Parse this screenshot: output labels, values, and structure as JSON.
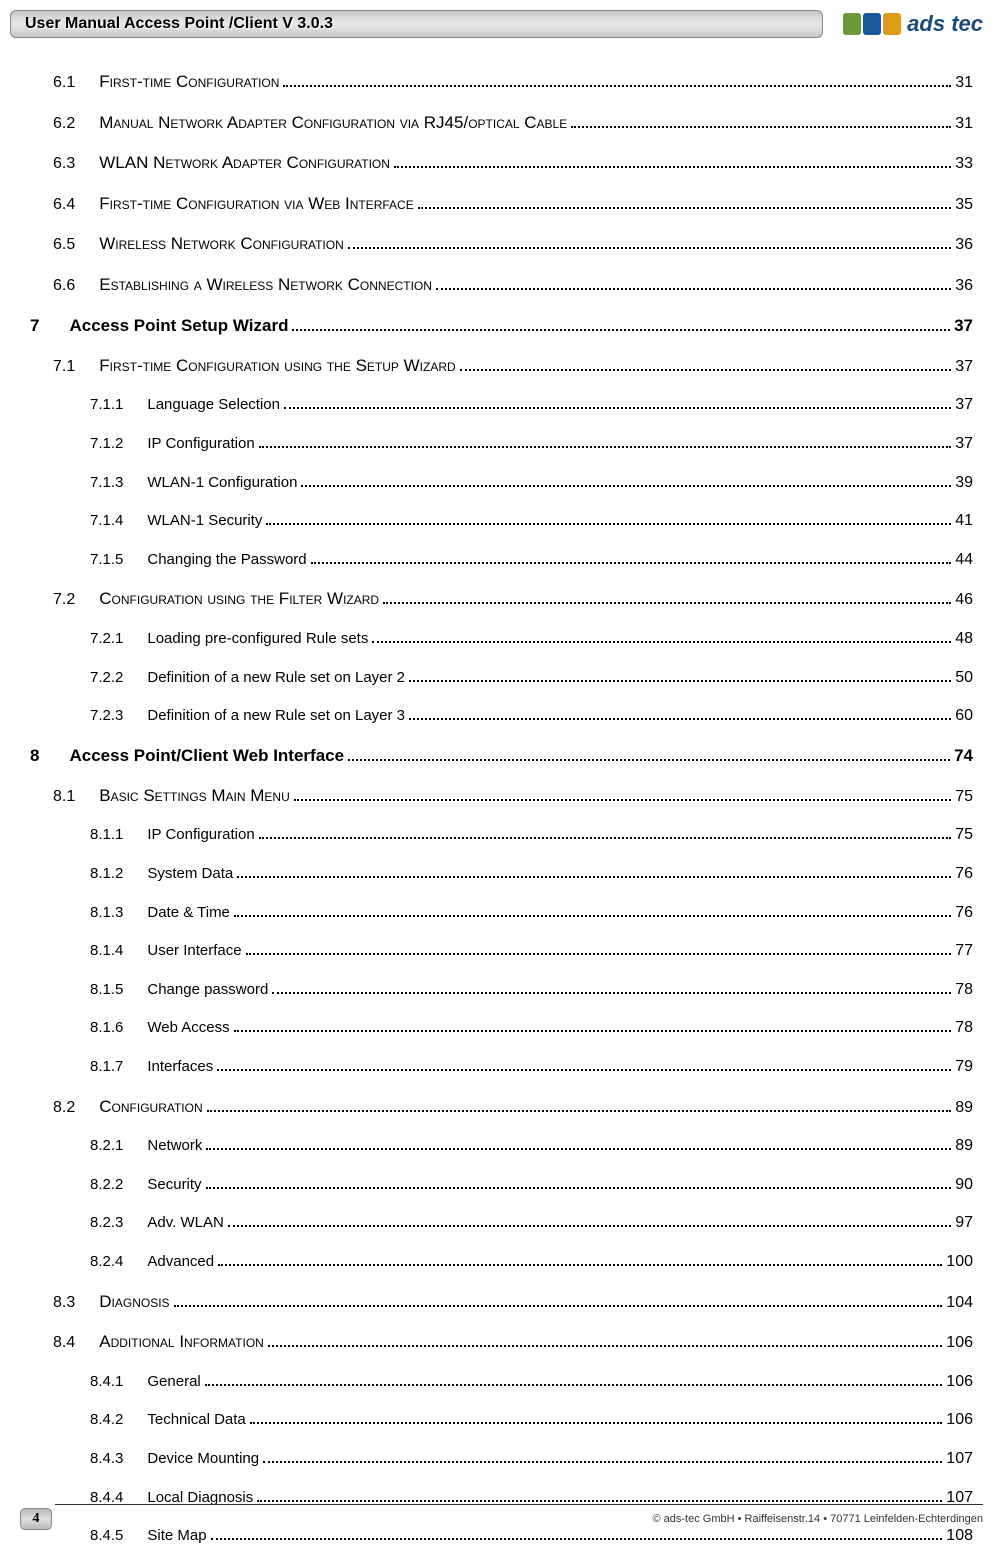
{
  "header": {
    "title": "User Manual Access Point /Client V 3.0.3",
    "logo_text": "ads tec",
    "logo_colors": [
      "#6a9a3a",
      "#1a5a9a",
      "#e09a1a"
    ],
    "logo_text_color": "#1a4a7a"
  },
  "toc": [
    {
      "level": "section",
      "num": "6.1",
      "title": "First-time Configuration",
      "page": "31"
    },
    {
      "level": "section",
      "num": "6.2",
      "title": "Manual Network Adapter Configuration via RJ45/optical Cable",
      "page": "31"
    },
    {
      "level": "section",
      "num": "6.3",
      "title": "WLAN Network Adapter Configuration",
      "page": "33"
    },
    {
      "level": "section",
      "num": "6.4",
      "title": "First-time Configuration via Web Interface",
      "page": "35"
    },
    {
      "level": "section",
      "num": "6.5",
      "title": "Wireless Network Configuration",
      "page": "36"
    },
    {
      "level": "section",
      "num": "6.6",
      "title": "Establishing a Wireless Network Connection",
      "page": "36"
    },
    {
      "level": "chapter",
      "num": "7",
      "title": "Access Point Setup Wizard",
      "page": "37"
    },
    {
      "level": "section",
      "num": "7.1",
      "title": "First-time Configuration using the Setup Wizard",
      "page": "37"
    },
    {
      "level": "sub",
      "num": "7.1.1",
      "title": "Language Selection",
      "page": "37"
    },
    {
      "level": "sub",
      "num": "7.1.2",
      "title": "IP Configuration",
      "page": "37"
    },
    {
      "level": "sub",
      "num": "7.1.3",
      "title": "WLAN-1 Configuration",
      "page": "39"
    },
    {
      "level": "sub",
      "num": "7.1.4",
      "title": "WLAN-1 Security",
      "page": "41"
    },
    {
      "level": "sub",
      "num": "7.1.5",
      "title": "Changing the Password",
      "page": "44"
    },
    {
      "level": "section",
      "num": "7.2",
      "title": "Configuration using the Filter Wizard",
      "page": "46"
    },
    {
      "level": "sub",
      "num": "7.2.1",
      "title": "Loading pre-configured Rule sets",
      "page": "48"
    },
    {
      "level": "sub",
      "num": "7.2.2",
      "title": "Definition of a new Rule set on Layer 2",
      "page": "50"
    },
    {
      "level": "sub",
      "num": "7.2.3",
      "title": "Definition of a new Rule set on Layer 3",
      "page": "60"
    },
    {
      "level": "chapter",
      "num": "8",
      "title": "Access Point/Client Web Interface",
      "page": "74"
    },
    {
      "level": "section",
      "num": "8.1",
      "title": "Basic Settings Main Menu",
      "page": "75"
    },
    {
      "level": "sub",
      "num": "8.1.1",
      "title": "IP Configuration",
      "page": "75"
    },
    {
      "level": "sub",
      "num": "8.1.2",
      "title": "System Data",
      "page": "76"
    },
    {
      "level": "sub",
      "num": "8.1.3",
      "title": "Date & Time",
      "page": "76"
    },
    {
      "level": "sub",
      "num": "8.1.4",
      "title": "User Interface",
      "page": "77"
    },
    {
      "level": "sub",
      "num": "8.1.5",
      "title": "Change password",
      "page": "78"
    },
    {
      "level": "sub",
      "num": "8.1.6",
      "title": "Web Access",
      "page": "78"
    },
    {
      "level": "sub",
      "num": "8.1.7",
      "title": "Interfaces",
      "page": "79"
    },
    {
      "level": "section",
      "num": "8.2",
      "title": "Configuration",
      "page": "89"
    },
    {
      "level": "sub",
      "num": "8.2.1",
      "title": "Network",
      "page": "89"
    },
    {
      "level": "sub",
      "num": "8.2.2",
      "title": "Security",
      "page": "90"
    },
    {
      "level": "sub",
      "num": "8.2.3",
      "title": "Adv. WLAN",
      "page": "97"
    },
    {
      "level": "sub",
      "num": "8.2.4",
      "title": "Advanced",
      "page": "100"
    },
    {
      "level": "section",
      "num": "8.3",
      "title": "Diagnosis",
      "page": "104"
    },
    {
      "level": "section",
      "num": "8.4",
      "title": "Additional Information",
      "page": "106"
    },
    {
      "level": "sub",
      "num": "8.4.1",
      "title": "General",
      "page": "106"
    },
    {
      "level": "sub",
      "num": "8.4.2",
      "title": "Technical Data",
      "page": "106"
    },
    {
      "level": "sub",
      "num": "8.4.3",
      "title": "Device Mounting",
      "page": "107"
    },
    {
      "level": "sub",
      "num": "8.4.4",
      "title": "Local Diagnosis",
      "page": "107"
    },
    {
      "level": "sub",
      "num": "8.4.5",
      "title": "Site Map",
      "page": "108"
    }
  ],
  "footer": {
    "page_number": "4",
    "copyright": "© ads-tec GmbH • Raiffeisenstr.14 • 70771 Leinfelden-Echterdingen"
  }
}
